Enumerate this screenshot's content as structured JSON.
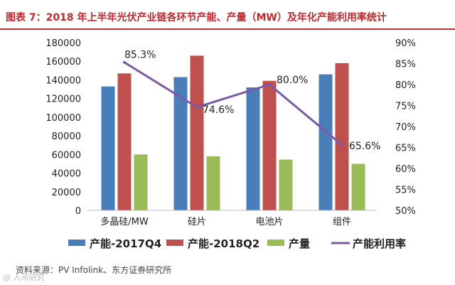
{
  "header": {
    "title": "图表 7：2018 年上半年光伏产业链各环节产能、产量（MW）及年化产能利用率统计"
  },
  "colors": {
    "title": "#c0282d",
    "series1": "#4a7ebb",
    "series2": "#c0504d",
    "series3": "#9bbb59",
    "line": "#7b5ba6"
  },
  "chart_data": {
    "type": "bar",
    "categories": [
      "多晶硅/MW",
      "硅片",
      "电池片",
      "组件"
    ],
    "series": [
      {
        "name": "产能-2017Q4",
        "values": [
          133000,
          143000,
          132000,
          146000
        ]
      },
      {
        "name": "产能-2018Q2",
        "values": [
          147000,
          166000,
          139000,
          158000
        ]
      },
      {
        "name": "产量",
        "values": [
          60000,
          58000,
          54500,
          50000
        ]
      }
    ],
    "line_series": {
      "name": "产能利用率",
      "values": [
        85.3,
        74.6,
        80.0,
        65.6
      ],
      "labels": [
        "85.3%",
        "74.6%",
        "80.0%",
        "65.6%"
      ]
    },
    "ylim_left": [
      0,
      180000
    ],
    "yticks_left": [
      0,
      20000,
      40000,
      60000,
      80000,
      100000,
      120000,
      140000,
      160000,
      180000
    ],
    "ylim_right": [
      50,
      90
    ],
    "yticks_right": [
      "50%",
      "55%",
      "60%",
      "65%",
      "70%",
      "75%",
      "80%",
      "85%",
      "90%"
    ],
    "legend": [
      "产能-2017Q4",
      "产能-2018Q2",
      "产量",
      "产能利用率"
    ],
    "legend_position": "bottom"
  },
  "footer": {
    "source": "资料来源：PV Infolink、东方证券研究所",
    "watermark": "@ 人间研究"
  }
}
